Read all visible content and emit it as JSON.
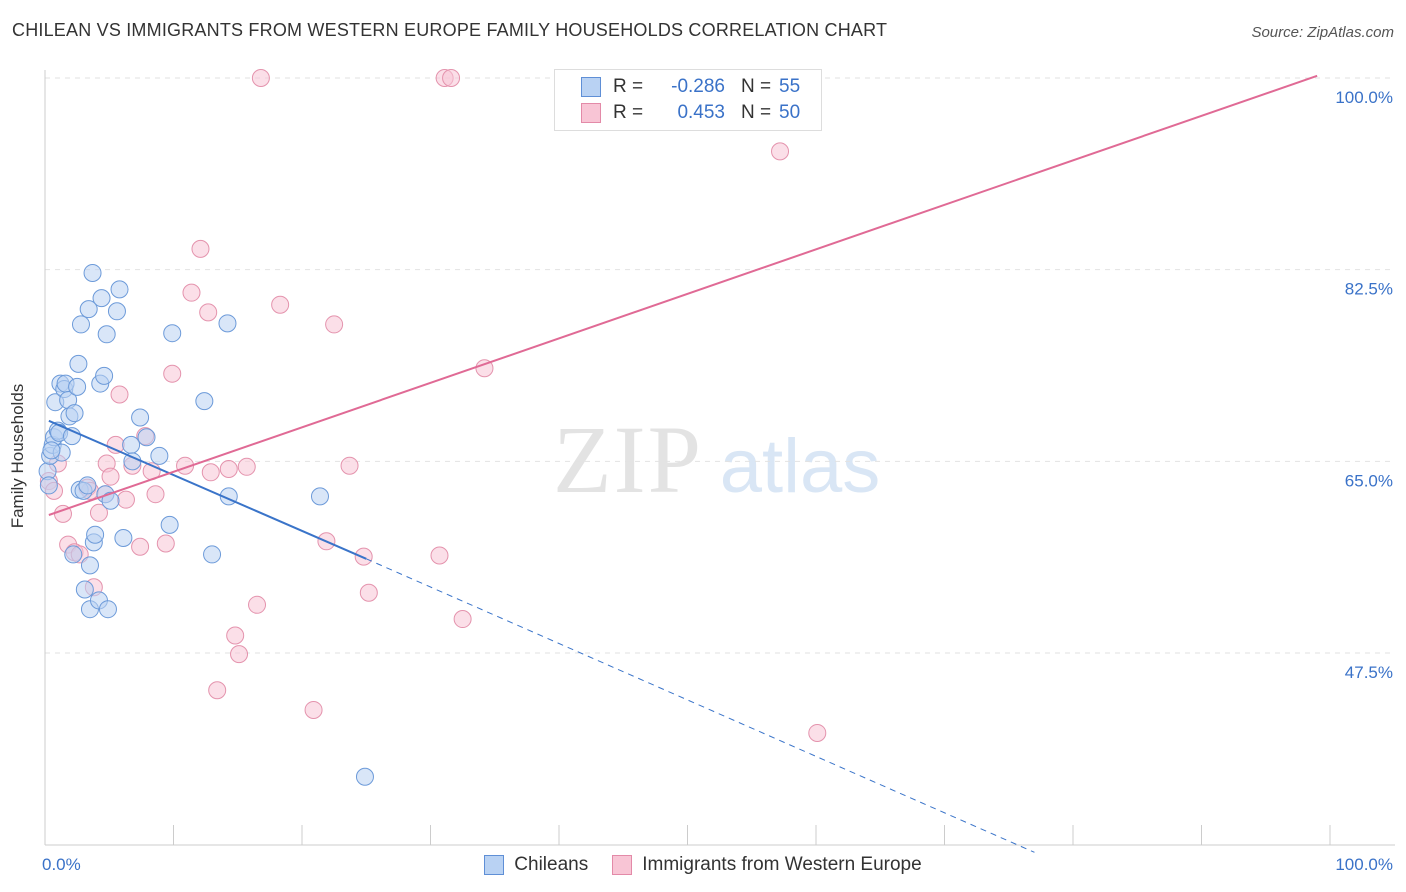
{
  "title": "CHILEAN VS IMMIGRANTS FROM WESTERN EUROPE FAMILY HOUSEHOLDS CORRELATION CHART",
  "source": "Source: ZipAtlas.com",
  "watermark": {
    "part1": "ZIP",
    "part2": "atlas"
  },
  "stats": {
    "rows": [
      {
        "r_label": "R =",
        "r_value": "-0.286",
        "n_label": "N =",
        "n_value": "55"
      },
      {
        "r_label": "R =",
        "r_value": "0.453",
        "n_label": "N =",
        "n_value": "50"
      }
    ]
  },
  "legend": {
    "items": [
      {
        "label": "Chileans"
      },
      {
        "label": "Immigrants from Western Europe"
      }
    ]
  },
  "colors": {
    "blue_fill": "#b9d2f3",
    "blue_stroke": "#6c9ad9",
    "blue_line": "#3a74c9",
    "pink_fill": "#f8c5d5",
    "pink_stroke": "#e493ad",
    "pink_line": "#e06a95",
    "grid": "#e2e2e2",
    "tick_label": "#3a72c8"
  },
  "chart_data": {
    "type": "scatter",
    "title": "CHILEAN VS IMMIGRANTS FROM WESTERN EUROPE FAMILY HOUSEHOLDS CORRELATION CHART",
    "xlabel": "",
    "ylabel": "Family Households",
    "xlim": [
      0,
      100
    ],
    "ylim": [
      30,
      102
    ],
    "x_tick_labels": [
      {
        "value": 0,
        "label": "0.0%"
      },
      {
        "value": 100,
        "label": "100.0%"
      }
    ],
    "y_tick_labels": [
      {
        "value": 47.5,
        "label": "47.5%"
      },
      {
        "value": 65.0,
        "label": "65.0%"
      },
      {
        "value": 82.5,
        "label": "82.5%"
      },
      {
        "value": 100.0,
        "label": "100.0%"
      }
    ],
    "series": [
      {
        "name": "Chileans",
        "color": "blue",
        "r": -0.286,
        "n": 55,
        "trend": {
          "x_start": 0.3,
          "y_start": 68.7,
          "x_end_solid": 25,
          "y_end_solid": 56.1,
          "x_end_dashed": 77,
          "y_end_dashed": 29.3
        },
        "points": [
          [
            0.2,
            64.1
          ],
          [
            0.3,
            62.8
          ],
          [
            0.4,
            65.5
          ],
          [
            0.6,
            66.5
          ],
          [
            0.7,
            67.2
          ],
          [
            0.8,
            70.4
          ],
          [
            1.0,
            67.8
          ],
          [
            1.1,
            67.6
          ],
          [
            1.2,
            72.1
          ],
          [
            1.3,
            65.8
          ],
          [
            1.5,
            71.6
          ],
          [
            1.6,
            72.1
          ],
          [
            1.8,
            70.6
          ],
          [
            1.9,
            69.1
          ],
          [
            2.1,
            67.3
          ],
          [
            2.2,
            56.5
          ],
          [
            2.3,
            69.4
          ],
          [
            2.5,
            71.8
          ],
          [
            2.6,
            73.9
          ],
          [
            2.7,
            62.4
          ],
          [
            2.8,
            77.5
          ],
          [
            3.0,
            62.3
          ],
          [
            3.1,
            53.3
          ],
          [
            3.3,
            62.8
          ],
          [
            3.4,
            78.9
          ],
          [
            3.5,
            51.5
          ],
          [
            3.5,
            55.5
          ],
          [
            3.7,
            82.2
          ],
          [
            3.8,
            57.6
          ],
          [
            3.9,
            58.3
          ],
          [
            4.2,
            52.3
          ],
          [
            4.3,
            72.1
          ],
          [
            4.4,
            79.9
          ],
          [
            4.6,
            72.8
          ],
          [
            4.7,
            62.0
          ],
          [
            4.8,
            76.6
          ],
          [
            4.9,
            51.5
          ],
          [
            5.1,
            61.4
          ],
          [
            5.6,
            78.7
          ],
          [
            5.8,
            80.7
          ],
          [
            6.1,
            58.0
          ],
          [
            6.7,
            66.5
          ],
          [
            6.8,
            65.0
          ],
          [
            7.4,
            69.0
          ],
          [
            7.9,
            67.2
          ],
          [
            8.9,
            65.5
          ],
          [
            9.7,
            59.2
          ],
          [
            9.9,
            76.7
          ],
          [
            12.4,
            70.5
          ],
          [
            13.0,
            56.5
          ],
          [
            14.2,
            77.6
          ],
          [
            14.3,
            61.8
          ],
          [
            21.4,
            61.8
          ],
          [
            24.9,
            36.2
          ],
          [
            0.5,
            66.0
          ]
        ]
      },
      {
        "name": "Immigrants from Western Europe",
        "color": "pink",
        "r": 0.453,
        "n": 50,
        "trend": {
          "x_start": 0.3,
          "y_start": 60.1,
          "x_end": 99,
          "y_end": 100.2
        },
        "points": [
          [
            0.3,
            63.2
          ],
          [
            0.7,
            62.3
          ],
          [
            1.0,
            64.8
          ],
          [
            1.4,
            60.2
          ],
          [
            1.8,
            57.4
          ],
          [
            2.3,
            56.7
          ],
          [
            2.7,
            56.5
          ],
          [
            3.3,
            62.6
          ],
          [
            3.5,
            62.3
          ],
          [
            3.8,
            53.5
          ],
          [
            4.2,
            60.3
          ],
          [
            4.7,
            62.0
          ],
          [
            4.8,
            64.8
          ],
          [
            5.1,
            63.6
          ],
          [
            5.5,
            66.5
          ],
          [
            5.8,
            71.1
          ],
          [
            6.3,
            61.5
          ],
          [
            6.8,
            64.6
          ],
          [
            7.4,
            57.2
          ],
          [
            7.8,
            67.3
          ],
          [
            8.3,
            64.1
          ],
          [
            8.6,
            62.0
          ],
          [
            9.4,
            57.5
          ],
          [
            9.9,
            73.0
          ],
          [
            10.9,
            64.6
          ],
          [
            11.4,
            80.4
          ],
          [
            12.1,
            84.4
          ],
          [
            12.7,
            78.6
          ],
          [
            12.9,
            64.0
          ],
          [
            13.4,
            44.1
          ],
          [
            14.3,
            64.3
          ],
          [
            14.8,
            49.1
          ],
          [
            15.1,
            47.4
          ],
          [
            15.7,
            64.5
          ],
          [
            16.5,
            51.9
          ],
          [
            16.8,
            100.0
          ],
          [
            18.3,
            79.3
          ],
          [
            20.9,
            42.3
          ],
          [
            21.9,
            57.7
          ],
          [
            22.5,
            77.5
          ],
          [
            23.7,
            64.6
          ],
          [
            24.8,
            56.3
          ],
          [
            25.2,
            53.0
          ],
          [
            30.7,
            56.4
          ],
          [
            31.1,
            100.0
          ],
          [
            31.6,
            100.0
          ],
          [
            32.5,
            50.6
          ],
          [
            34.2,
            73.5
          ],
          [
            57.2,
            93.3
          ],
          [
            60.1,
            40.2
          ]
        ]
      }
    ]
  }
}
